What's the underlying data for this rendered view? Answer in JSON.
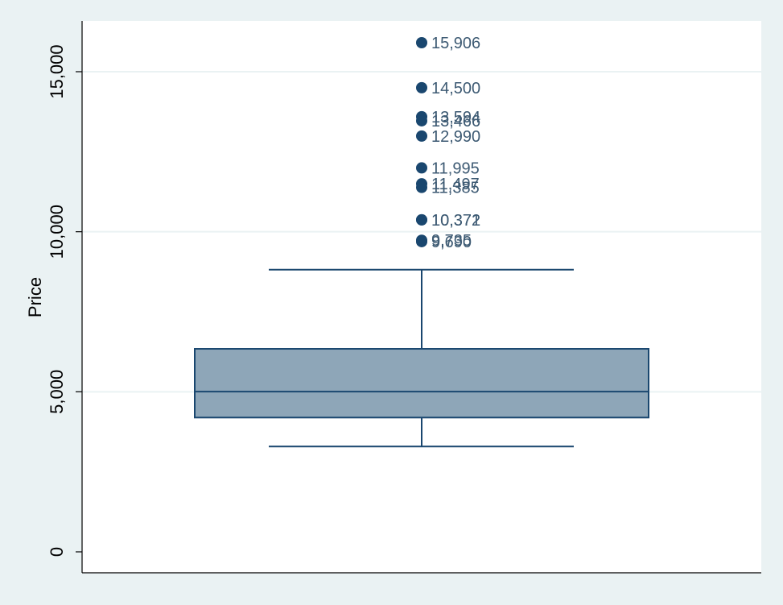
{
  "chart_data": {
    "type": "box",
    "ylabel": "Price",
    "ylim": [
      0,
      16600
    ],
    "yticks": [
      0,
      5000,
      10000,
      15000
    ],
    "ytick_labels": [
      "0",
      "5,000",
      "10,000",
      "15,000"
    ],
    "grid": true,
    "box": {
      "lower_whisker": 3291,
      "q1": 4195,
      "median": 5006,
      "q3": 6342,
      "upper_whisker": 8814
    },
    "outliers": [
      {
        "value": 15906,
        "label": "15,906"
      },
      {
        "value": 14500,
        "label": "14,500"
      },
      {
        "value": 13594,
        "label": "13,594"
      },
      {
        "value": 13466,
        "label": "13,466"
      },
      {
        "value": 12990,
        "label": "12,990"
      },
      {
        "value": 11995,
        "label": "11,995"
      },
      {
        "value": 11497,
        "label": "11,497"
      },
      {
        "value": 11385,
        "label": "11,385"
      },
      {
        "value": 10372,
        "label": "10,372"
      },
      {
        "value": 10371,
        "label": "10,371"
      },
      {
        "value": 9735,
        "label": "9,735"
      },
      {
        "value": 9690,
        "label": "9,690"
      }
    ],
    "colors": {
      "background": "#eaf2f3",
      "plot_background": "#ffffff",
      "box_fill": "#8ea6b8",
      "line": "#1a476f",
      "marker": "#1a476f",
      "label_text": "#3d5a73",
      "gridline": "#eaf2f3",
      "axis": "#000000"
    }
  }
}
